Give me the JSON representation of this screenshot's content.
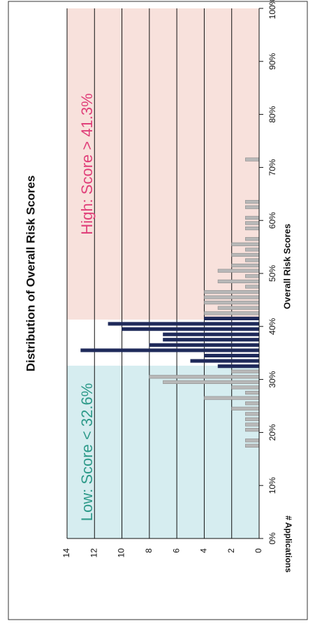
{
  "chart_data": {
    "type": "histogram",
    "title": "Distribution of Overall Risk Scores",
    "x_label": "Overall Risk Scores",
    "y_label": "# Applications",
    "bins": [
      17,
      18,
      19,
      20,
      21,
      22,
      23,
      24,
      25,
      26,
      27,
      28,
      29,
      30,
      31,
      32,
      33,
      34,
      35,
      36,
      37,
      38,
      39,
      40,
      41,
      42,
      43,
      44,
      45,
      46,
      47,
      48,
      49,
      50,
      51,
      52,
      53,
      54,
      55,
      56,
      57,
      58,
      59,
      60,
      61,
      62,
      63,
      64,
      65,
      66,
      67,
      68,
      69,
      70,
      71,
      72
    ],
    "counts": [
      1,
      1,
      0,
      1,
      1,
      1,
      1,
      2,
      1,
      4,
      1,
      2,
      7,
      8,
      2,
      3,
      5,
      4,
      13,
      8,
      7,
      7,
      10,
      11,
      4,
      4,
      3,
      4,
      4,
      4,
      1,
      3,
      1,
      3,
      2,
      1,
      2,
      1,
      2,
      1,
      0,
      1,
      1,
      1,
      0,
      1,
      1,
      0,
      0,
      0,
      0,
      0,
      0,
      0,
      1
    ],
    "color": "#1f2a5a",
    "region_bar_color": "#b8b8b8",
    "regions": [
      {
        "label": "Low: Score < 32.6%",
        "from": 0,
        "to": 32.6,
        "color": "#d6edf0",
        "text_color": "#2e9a8a"
      },
      {
        "label": "High: Score > 41.3%",
        "from": 41.3,
        "to": 100,
        "color": "#f8e1dc",
        "text_color": "#e0407a"
      }
    ],
    "xlim": [
      0,
      100
    ],
    "xticks": [
      {
        "value": 0,
        "label": "0%"
      },
      {
        "value": 10,
        "label": "10%"
      },
      {
        "value": 20,
        "label": "20%"
      },
      {
        "value": 30,
        "label": "30%"
      },
      {
        "value": 40,
        "label": "40%"
      },
      {
        "value": 50,
        "label": "50%"
      },
      {
        "value": 60,
        "label": "60%"
      },
      {
        "value": 70,
        "label": "70%"
      },
      {
        "value": 80,
        "label": "80%"
      },
      {
        "value": 90,
        "label": "90%"
      },
      {
        "value": 100,
        "label": "100%"
      }
    ],
    "ylim": [
      0,
      14
    ],
    "yticks": [
      0,
      2,
      4,
      6,
      8,
      10,
      12,
      14
    ],
    "grid": true,
    "rotation": -90
  }
}
